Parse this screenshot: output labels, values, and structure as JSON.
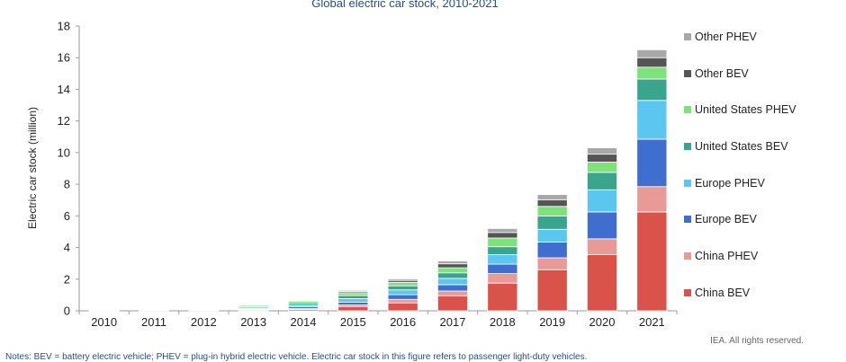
{
  "chart_data": {
    "type": "bar",
    "stacked": true,
    "title": "Global electric car stock, 2010-2021",
    "xlabel": "",
    "ylabel": "Electric car stock (million)",
    "ylim": [
      0,
      18
    ],
    "yticks": [
      "0",
      "2",
      "4",
      "6",
      "8",
      "10",
      "12",
      "14",
      "16",
      "18"
    ],
    "grid": false,
    "legend_position": "right",
    "categories": [
      "2010",
      "2011",
      "2012",
      "2013",
      "2014",
      "2015",
      "2016",
      "2017",
      "2018",
      "2019",
      "2020",
      "2021"
    ],
    "series": [
      {
        "name": "China BEV",
        "color": "#d9534a",
        "values": [
          0.01,
          0.02,
          0.03,
          0.05,
          0.09,
          0.25,
          0.5,
          0.95,
          1.75,
          2.6,
          3.55,
          6.25
        ]
      },
      {
        "name": "China PHEV",
        "color": "#e79a96",
        "values": [
          0.0,
          0.0,
          0.01,
          0.02,
          0.05,
          0.12,
          0.22,
          0.3,
          0.6,
          0.75,
          1.0,
          1.6
        ]
      },
      {
        "name": "Europe BEV",
        "color": "#3f6fce",
        "values": [
          0.01,
          0.02,
          0.03,
          0.05,
          0.12,
          0.18,
          0.3,
          0.4,
          0.6,
          1.0,
          1.7,
          3.0
        ]
      },
      {
        "name": "Europe PHEV",
        "color": "#5bc6f0",
        "values": [
          0.0,
          0.01,
          0.03,
          0.06,
          0.1,
          0.22,
          0.3,
          0.4,
          0.6,
          0.8,
          1.4,
          2.45
        ]
      },
      {
        "name": "United States BEV",
        "color": "#3aa58c",
        "values": [
          0.01,
          0.02,
          0.04,
          0.08,
          0.13,
          0.2,
          0.26,
          0.35,
          0.5,
          0.85,
          1.1,
          1.35
        ]
      },
      {
        "name": "United States PHEV",
        "color": "#7de27a",
        "values": [
          0.0,
          0.01,
          0.04,
          0.08,
          0.12,
          0.17,
          0.22,
          0.32,
          0.55,
          0.6,
          0.65,
          0.75
        ]
      },
      {
        "name": "Other BEV",
        "color": "#555555",
        "values": [
          0.01,
          0.01,
          0.02,
          0.03,
          0.05,
          0.08,
          0.12,
          0.25,
          0.35,
          0.42,
          0.5,
          0.6
        ]
      },
      {
        "name": "Other PHEV",
        "color": "#a8a8a8",
        "values": [
          0.0,
          0.01,
          0.01,
          0.03,
          0.04,
          0.07,
          0.1,
          0.18,
          0.25,
          0.33,
          0.4,
          0.5
        ]
      }
    ]
  },
  "credit": "IEA. All rights reserved.",
  "notes": "Notes: BEV = battery electric vehicle; PHEV = plug-in hybrid electric vehicle. Electric car stock in this figure refers to passenger light-duty vehicles."
}
